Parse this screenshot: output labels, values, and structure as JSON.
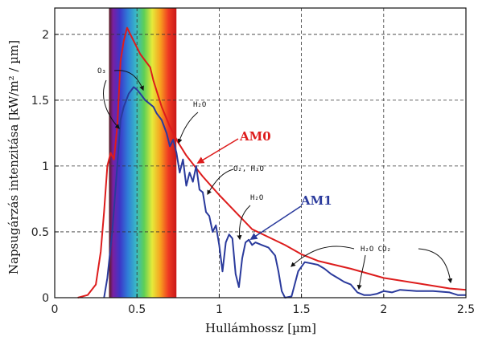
{
  "chart_data": {
    "type": "line",
    "title": "",
    "xlabel": "Hullámhossz [µm]",
    "ylabel": "Napsugárzás intenzitása [kW/m² / µm]",
    "xlim": [
      0,
      2.5
    ],
    "ylim": [
      0,
      2.2
    ],
    "grid": true,
    "x_ticks": [
      0,
      0.5,
      1,
      1.5,
      2,
      2.5
    ],
    "y_ticks": [
      0,
      0.5,
      1,
      1.5,
      2
    ],
    "x_tick_labels": [
      "0",
      "0.5",
      "1",
      "1.5",
      "2",
      "2.5"
    ],
    "y_tick_labels": [
      "0",
      "0.5",
      "1",
      "1.5",
      "2"
    ],
    "visible_band": {
      "x": [
        0.33,
        0.74
      ]
    },
    "series": [
      {
        "name": "AM0",
        "color": "#dd1c1c",
        "x": [
          0.14,
          0.2,
          0.25,
          0.28,
          0.3,
          0.32,
          0.34,
          0.36,
          0.38,
          0.4,
          0.42,
          0.44,
          0.46,
          0.48,
          0.5,
          0.52,
          0.55,
          0.58,
          0.6,
          0.65,
          0.7,
          0.75,
          0.8,
          0.85,
          0.9,
          1.0,
          1.1,
          1.2,
          1.3,
          1.4,
          1.5,
          1.6,
          1.8,
          2.0,
          2.2,
          2.4,
          2.5
        ],
        "y": [
          0.0,
          0.02,
          0.1,
          0.35,
          0.65,
          1.0,
          1.1,
          1.05,
          1.3,
          1.8,
          1.95,
          2.05,
          2.0,
          1.95,
          1.9,
          1.85,
          1.8,
          1.75,
          1.65,
          1.45,
          1.3,
          1.18,
          1.08,
          1.0,
          0.92,
          0.78,
          0.65,
          0.52,
          0.46,
          0.4,
          0.33,
          0.28,
          0.22,
          0.15,
          0.11,
          0.07,
          0.06
        ]
      },
      {
        "name": "AM1",
        "color": "#2a3a9c",
        "x": [
          0.3,
          0.32,
          0.35,
          0.38,
          0.4,
          0.42,
          0.45,
          0.48,
          0.5,
          0.52,
          0.55,
          0.58,
          0.6,
          0.62,
          0.65,
          0.68,
          0.7,
          0.72,
          0.74,
          0.76,
          0.78,
          0.8,
          0.82,
          0.84,
          0.86,
          0.88,
          0.9,
          0.92,
          0.94,
          0.96,
          0.98,
          1.0,
          1.02,
          1.04,
          1.06,
          1.08,
          1.1,
          1.12,
          1.14,
          1.16,
          1.18,
          1.2,
          1.22,
          1.26,
          1.3,
          1.34,
          1.36,
          1.38,
          1.4,
          1.44,
          1.48,
          1.52,
          1.56,
          1.6,
          1.64,
          1.68,
          1.72,
          1.76,
          1.8,
          1.84,
          1.88,
          1.92,
          1.96,
          2.0,
          2.05,
          2.1,
          2.2,
          2.3,
          2.4,
          2.45,
          2.5
        ],
        "y": [
          0.0,
          0.15,
          0.5,
          1.0,
          1.35,
          1.45,
          1.55,
          1.6,
          1.58,
          1.55,
          1.5,
          1.47,
          1.45,
          1.4,
          1.35,
          1.25,
          1.15,
          1.2,
          1.1,
          0.95,
          1.05,
          0.85,
          0.95,
          0.88,
          1.0,
          0.82,
          0.8,
          0.65,
          0.62,
          0.5,
          0.55,
          0.4,
          0.2,
          0.42,
          0.48,
          0.45,
          0.18,
          0.08,
          0.3,
          0.42,
          0.44,
          0.4,
          0.42,
          0.4,
          0.38,
          0.32,
          0.2,
          0.05,
          0.0,
          0.01,
          0.2,
          0.27,
          0.26,
          0.25,
          0.22,
          0.18,
          0.15,
          0.12,
          0.1,
          0.04,
          0.02,
          0.02,
          0.03,
          0.05,
          0.04,
          0.06,
          0.05,
          0.05,
          0.04,
          0.02,
          0.02
        ]
      }
    ],
    "annotations": {
      "am0": "AM0",
      "am1": "AM1",
      "o3": "O₃",
      "h2o_a": "H₂O",
      "o2_h2o": "O₂, H₂O",
      "h2o_b": "H₂O",
      "h2o_co2": "H₂O   CO₂"
    }
  }
}
